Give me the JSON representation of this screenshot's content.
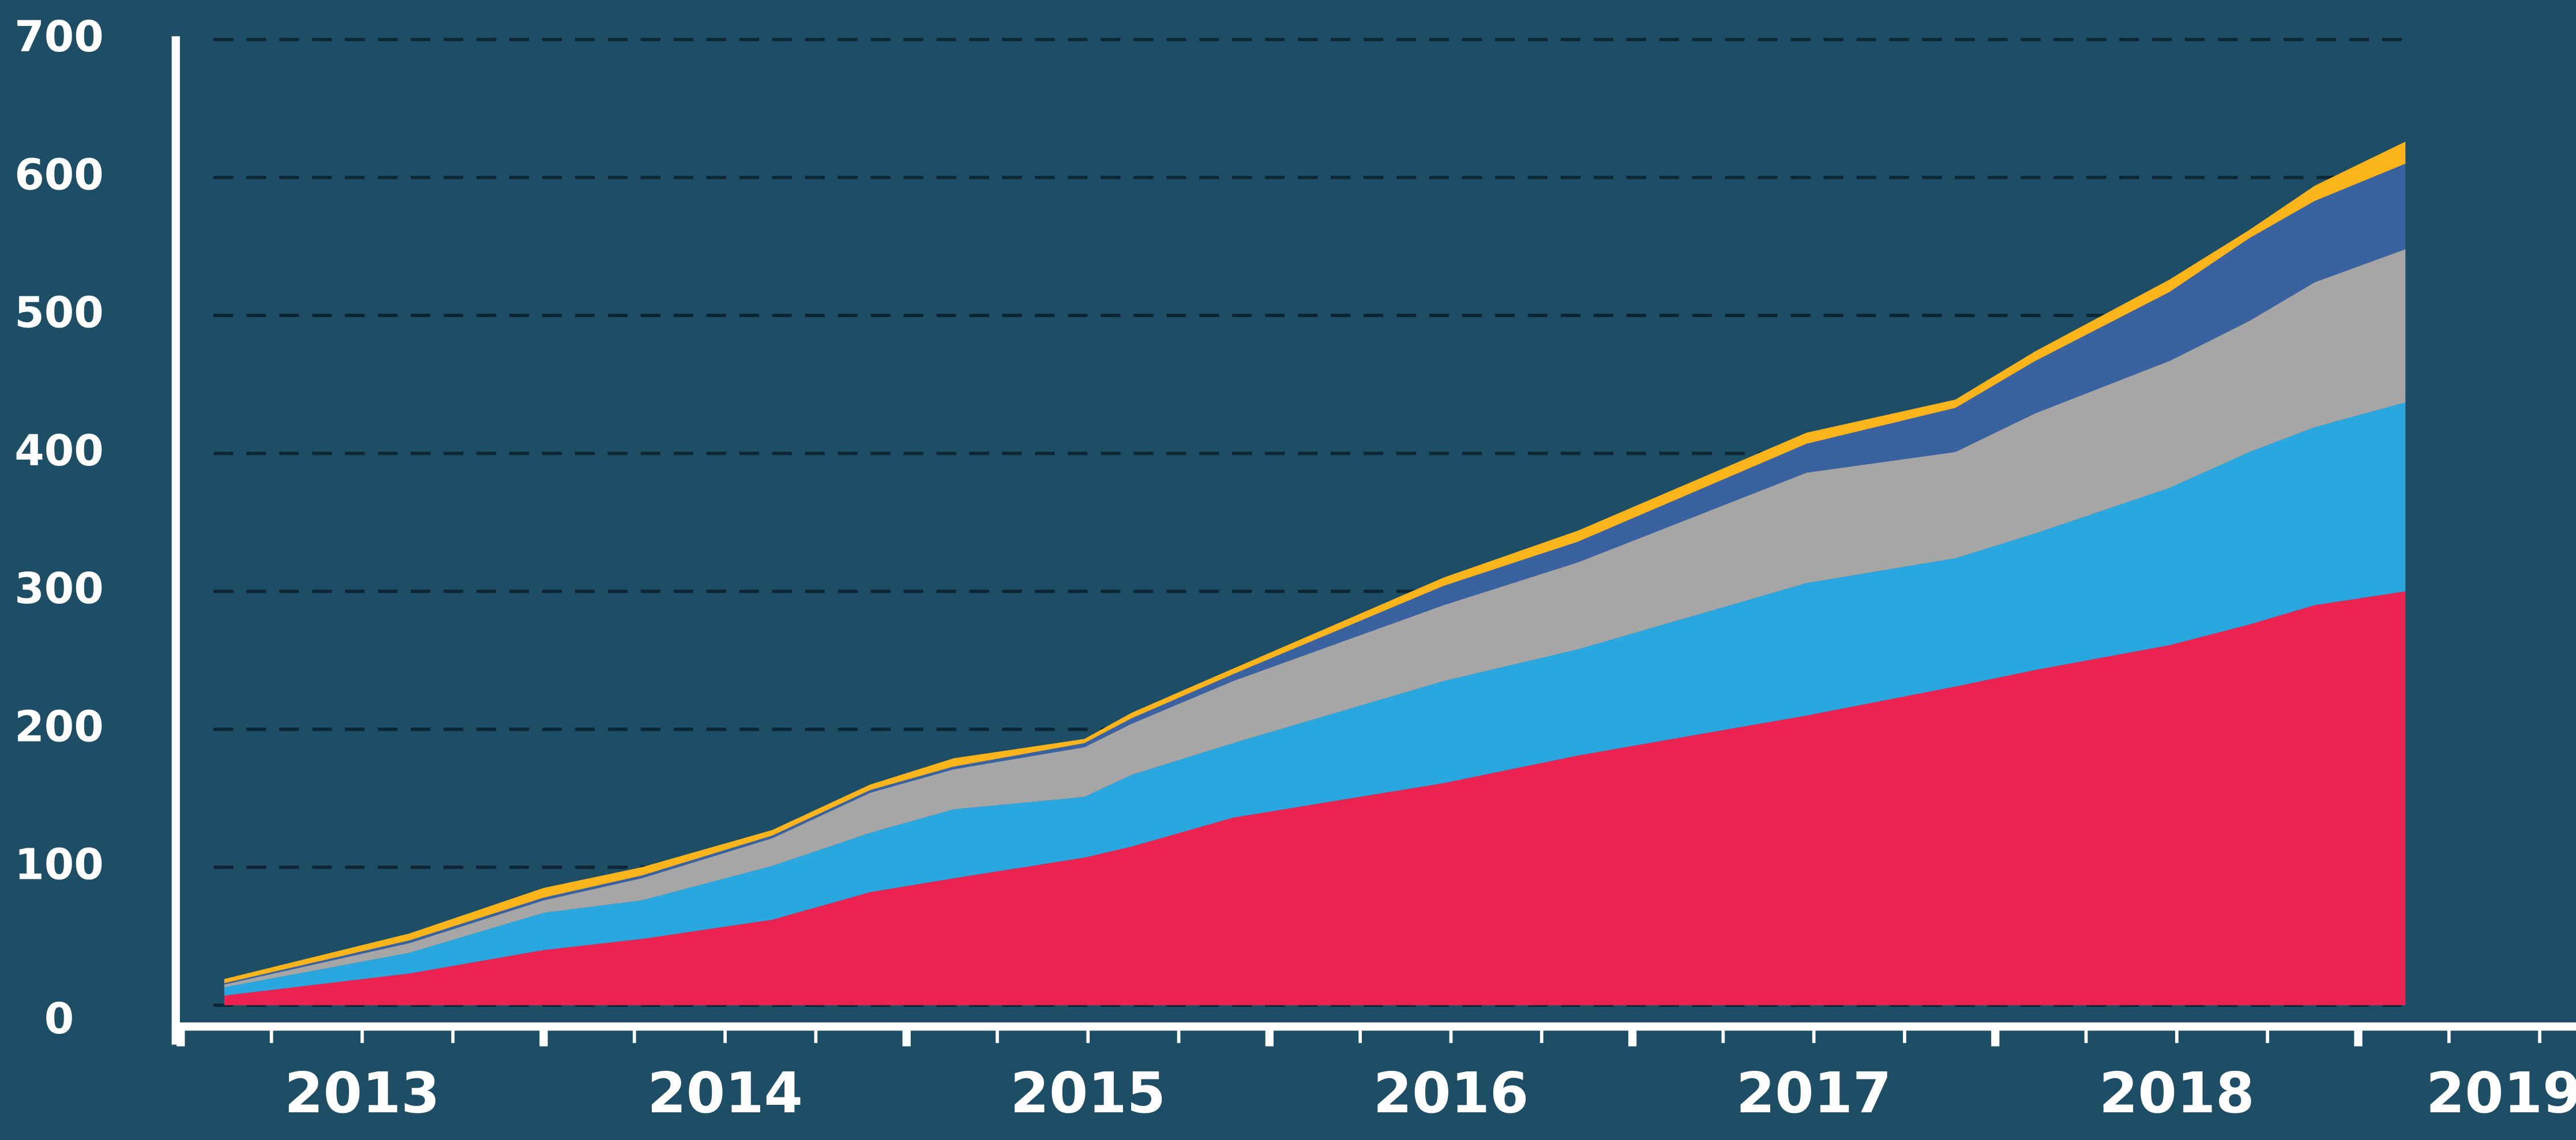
{
  "chart_data": {
    "type": "stacked_area",
    "x": [
      2013.12,
      2013.63,
      2014.0,
      2014.27,
      2014.63,
      2014.9,
      2015.13,
      2015.49,
      2015.62,
      2015.9,
      2016.48,
      2016.85,
      2017.48,
      2017.89,
      2018.11,
      2018.48,
      2018.7,
      2018.88,
      2019.13
    ],
    "series": [
      {
        "color": "#ec2350",
        "values": [
          7,
          23,
          40,
          48,
          62,
          82,
          92,
          107,
          115,
          136,
          161,
          181,
          210,
          231,
          243,
          261,
          276,
          290,
          300
        ]
      },
      {
        "color": "#2ba7e0",
        "values": [
          6,
          15,
          27,
          28,
          39,
          43,
          50,
          44,
          52,
          54,
          74,
          77,
          96,
          93,
          99,
          114,
          125,
          129,
          137
        ]
      },
      {
        "color": "#a6a6a6",
        "values": [
          2,
          7,
          9,
          16,
          20,
          29,
          29,
          36,
          37,
          45,
          55,
          63,
          80,
          77,
          87,
          92,
          95,
          105,
          111
        ]
      },
      {
        "color": "#3b62a0",
        "values": [
          1,
          2,
          2,
          2,
          2,
          2,
          2,
          3,
          4,
          5,
          14,
          15,
          21,
          32,
          38,
          50,
          60,
          59,
          62
        ]
      },
      {
        "color": "#fbb41a",
        "values": [
          3,
          5,
          7,
          6,
          4,
          4,
          6,
          3,
          4,
          4,
          6,
          8,
          8,
          6,
          7,
          9,
          6,
          11,
          16
        ]
      }
    ],
    "xlim": [
      2013,
      2019.6
    ],
    "xticks": [
      2013,
      2014,
      2015,
      2016,
      2017,
      2018,
      2019
    ],
    "ylim": [
      0,
      700
    ],
    "yticks": [
      0,
      100,
      200,
      300,
      400,
      500,
      600,
      700
    ],
    "grid": true
  }
}
